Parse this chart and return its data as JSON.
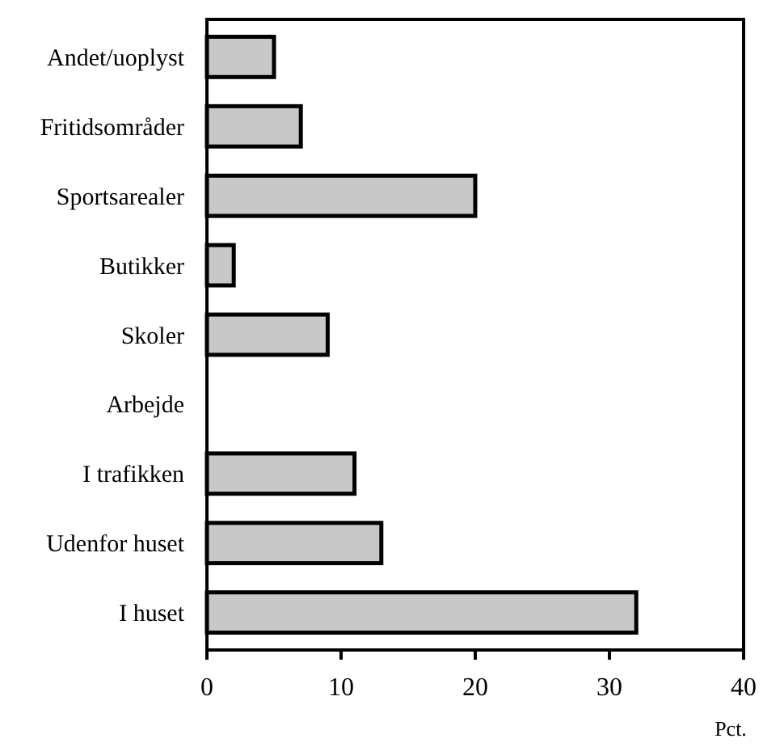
{
  "chart_data": {
    "type": "bar",
    "orientation": "horizontal",
    "categories": [
      "Andet/uoplyst",
      "Fritidsområder",
      "Sportsarealer",
      "Butikker",
      "Skoler",
      "Arbejde",
      "I trafikken",
      "Udenfor huset",
      "I huset"
    ],
    "values": [
      5,
      7,
      20,
      2,
      9,
      0,
      11,
      13,
      32
    ],
    "color": "#c8c8c8",
    "xlim": [
      0,
      40
    ],
    "xticks": [
      0,
      10,
      20,
      30,
      40
    ],
    "xlabel": "Pct.",
    "grid": false
  }
}
